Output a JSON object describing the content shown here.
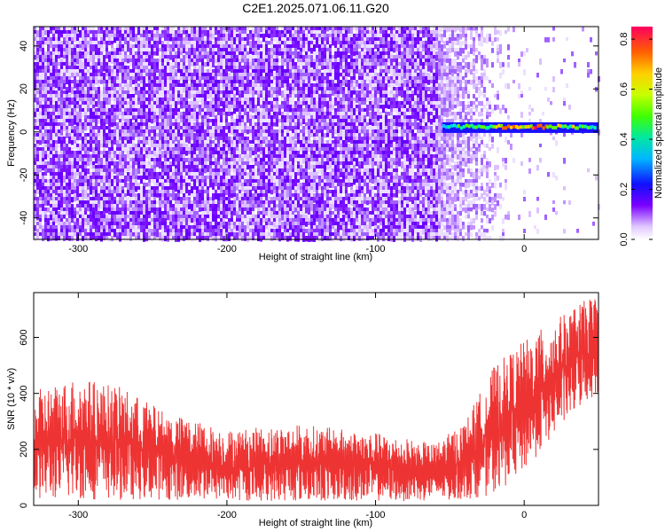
{
  "title": "C2E1.2025.071.06.11.G20",
  "chart_data": [
    {
      "type": "heatmap",
      "xlabel": "Height of straight line (km)",
      "ylabel": "Frequency (Hz)",
      "xlim": [
        -330,
        50
      ],
      "ylim": [
        -50,
        49
      ],
      "x_ticks": [
        -300,
        -200,
        -100,
        0
      ],
      "y_ticks": [
        -40,
        -20,
        0,
        20,
        40
      ],
      "colorbar": {
        "label": "Normalized spectral amplitude",
        "range": [
          0,
          0.85
        ],
        "ticks": [
          0.0,
          0.2,
          0.4,
          0.6,
          0.8
        ]
      },
      "regions": [
        {
          "x_from": -330,
          "x_to": -58,
          "description": "dense broadband noise, amplitude ~0.05-0.15, all frequencies"
        },
        {
          "x_from": -58,
          "x_to": 50,
          "description": "sparse noise, fading with height"
        }
      ],
      "signal_line": {
        "x_from": -55,
        "x_to": 50,
        "frequency_hz": 2,
        "points": [
          {
            "x": -55,
            "amp": 0.35
          },
          {
            "x": -45,
            "amp": 0.45
          },
          {
            "x": -35,
            "amp": 0.5
          },
          {
            "x": -25,
            "amp": 0.55
          },
          {
            "x": -15,
            "amp": 0.7
          },
          {
            "x": -5,
            "amp": 0.6
          },
          {
            "x": 5,
            "amp": 0.75
          },
          {
            "x": 15,
            "amp": 0.65
          },
          {
            "x": 25,
            "amp": 0.55
          },
          {
            "x": 35,
            "amp": 0.5
          },
          {
            "x": 45,
            "amp": 0.45
          }
        ]
      }
    },
    {
      "type": "line",
      "xlabel": "Height of straight line (km)",
      "ylabel": "SNR (10 * v/v)",
      "xlim": [
        -330,
        50
      ],
      "ylim": [
        0,
        760
      ],
      "x_ticks": [
        -300,
        -200,
        -100,
        0
      ],
      "y_ticks": [
        0,
        200,
        400,
        600
      ],
      "color": "#ee3333",
      "envelope": [
        {
          "x": -330,
          "low": 20,
          "high": 410
        },
        {
          "x": -300,
          "low": 20,
          "high": 460
        },
        {
          "x": -270,
          "low": 20,
          "high": 420
        },
        {
          "x": -240,
          "low": 20,
          "high": 330
        },
        {
          "x": -200,
          "low": 15,
          "high": 270
        },
        {
          "x": -150,
          "low": 15,
          "high": 290
        },
        {
          "x": -100,
          "low": 15,
          "high": 260
        },
        {
          "x": -60,
          "low": 15,
          "high": 220
        },
        {
          "x": -40,
          "low": 20,
          "high": 300
        },
        {
          "x": -20,
          "low": 40,
          "high": 500
        },
        {
          "x": 0,
          "low": 120,
          "high": 590
        },
        {
          "x": 20,
          "low": 250,
          "high": 660
        },
        {
          "x": 40,
          "low": 360,
          "high": 730
        },
        {
          "x": 50,
          "low": 400,
          "high": 760
        }
      ]
    }
  ]
}
